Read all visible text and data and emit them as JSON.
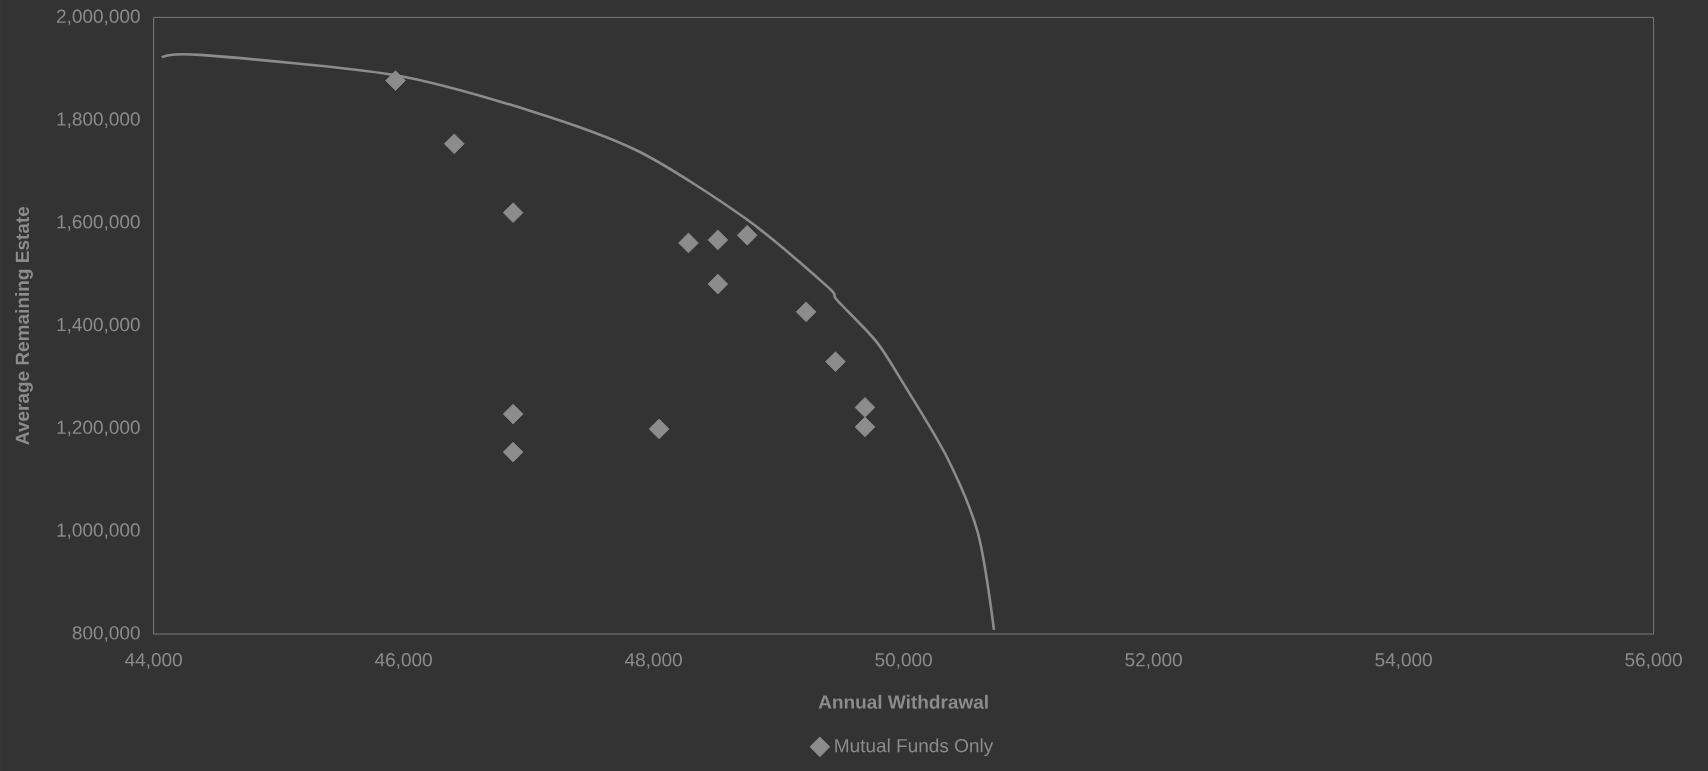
{
  "chart_data": {
    "type": "scatter",
    "xlabel": "Annual Withdrawal",
    "ylabel": "Average Remaining Estate",
    "legend": "bottom",
    "grid": false,
    "xlim": [
      44000,
      56000
    ],
    "ylim": [
      800000,
      2000000
    ],
    "xticks": [
      {
        "value": 44000,
        "label": "44,000"
      },
      {
        "value": 46000,
        "label": "46,000"
      },
      {
        "value": 48000,
        "label": "48,000"
      },
      {
        "value": 50000,
        "label": "50,000"
      },
      {
        "value": 52000,
        "label": "52,000"
      },
      {
        "value": 54000,
        "label": "54,000"
      },
      {
        "value": 56000,
        "label": "56,000"
      }
    ],
    "yticks": [
      {
        "value": 800000,
        "label": "800,000"
      },
      {
        "value": 1000000,
        "label": "1,000,000"
      },
      {
        "value": 1200000,
        "label": "1,200,000"
      },
      {
        "value": 1400000,
        "label": "1,400,000"
      },
      {
        "value": 1600000,
        "label": "1,600,000"
      },
      {
        "value": 1800000,
        "label": "1,800,000"
      },
      {
        "value": 2000000,
        "label": "2,000,000"
      }
    ],
    "series": [
      {
        "name": "Mutual Funds Only",
        "marker": "diamond",
        "color": "#8c8c8c",
        "x": [
          45935,
          46405,
          46876,
          46876,
          46876,
          48044,
          48279,
          48514,
          48514,
          48749,
          49220,
          49455,
          49691,
          49691
        ],
        "values": [
          1877000,
          1754000,
          1620000,
          1228000,
          1154000,
          1199000,
          1561000,
          1567000,
          1481000,
          1576000,
          1427000,
          1330000,
          1241000,
          1203000
        ]
      },
      {
        "type": "line",
        "color": "#8c8c8c",
        "x": [
          44067,
          44370,
          45923,
          47003,
          47875,
          48739,
          49391,
          49467,
          49779,
          49987,
          50347,
          50595,
          50723
        ],
        "values": [
          1922000,
          1927000,
          1888000,
          1819000,
          1740000,
          1608000,
          1476000,
          1450000,
          1370000,
          1292000,
          1144000,
          996000,
          808000
        ]
      }
    ]
  }
}
